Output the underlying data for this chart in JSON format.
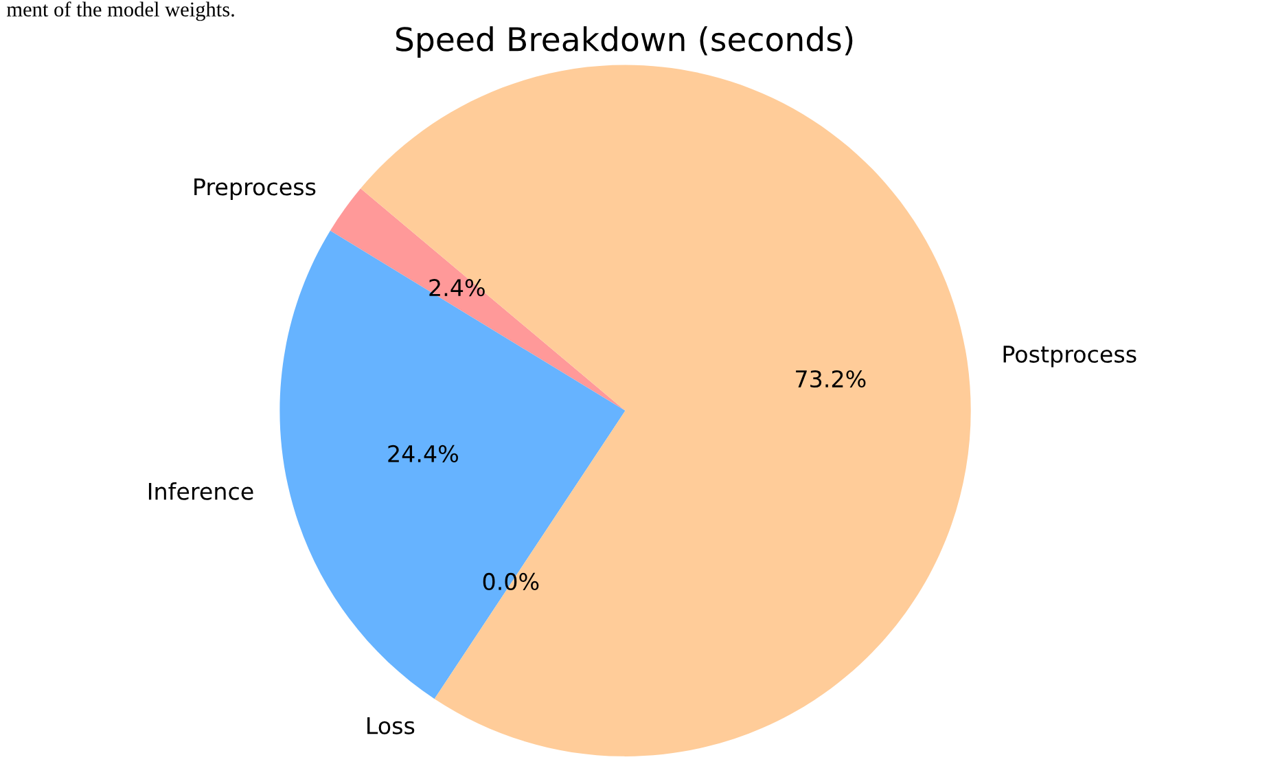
{
  "chart_data": {
    "type": "pie",
    "title": "Speed Breakdown (seconds)",
    "categories": [
      "Preprocess",
      "Inference",
      "Loss",
      "Postprocess"
    ],
    "values": [
      2.4,
      24.4,
      0.0,
      73.2
    ],
    "value_labels": [
      "2.4%",
      "24.4%",
      "0.0%",
      "73.2%"
    ],
    "colors": [
      "#ff9999",
      "#66b3ff",
      "#99ff99",
      "#ffcc99"
    ],
    "annotations": [
      "ment of the model weights."
    ]
  }
}
